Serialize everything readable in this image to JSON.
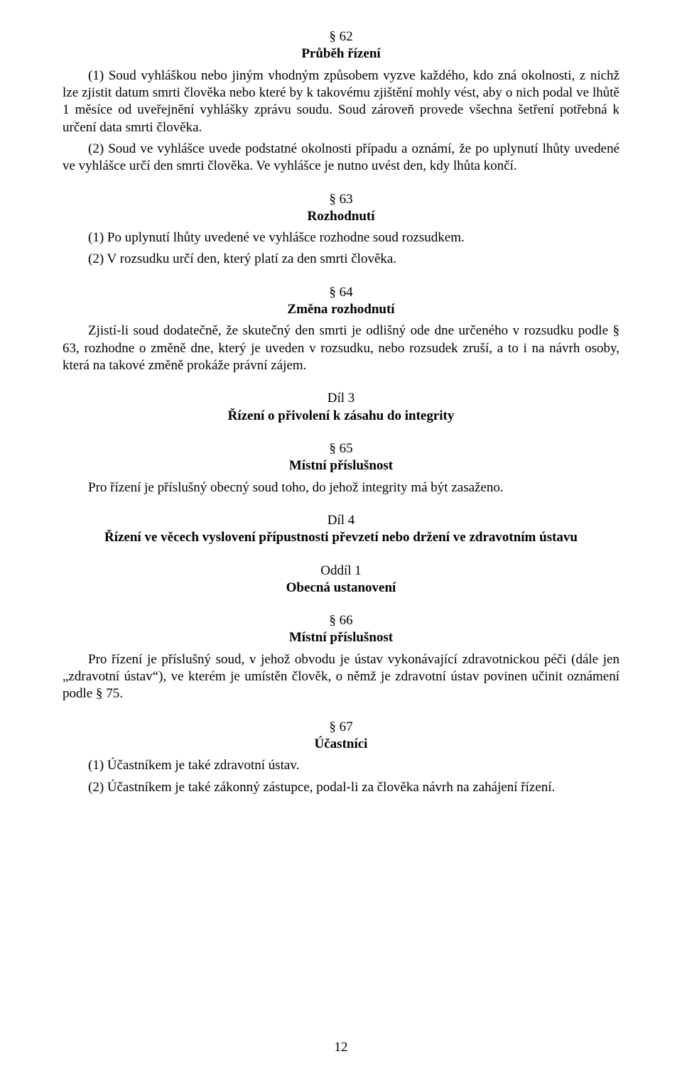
{
  "s62": {
    "num": "§ 62",
    "title": "Průběh řízení",
    "p1": "(1) Soud vyhláškou nebo jiným vhodným způsobem vyzve každého, kdo zná okolnosti, z nichž lze zjistit datum smrti člověka nebo které by k takovému zjištění mohly vést, aby o nich podal ve lhůtě 1 měsíce od uveřejnění vyhlášky zprávu soudu. Soud zároveň provede všechna šetření potřebná k určení data smrti člověka.",
    "p2": "(2) Soud ve vyhlášce uvede podstatné okolnosti případu a oznámí, že po uplynutí lhůty uvedené ve vyhlášce určí den smrti člověka. Ve vyhlášce je nutno uvést den, kdy lhůta končí."
  },
  "s63": {
    "num": "§ 63",
    "title": "Rozhodnutí",
    "p1": "(1) Po uplynutí lhůty uvedené ve vyhlášce rozhodne soud rozsudkem.",
    "p2": "(2) V rozsudku určí den, který platí za den smrti člověka."
  },
  "s64": {
    "num": "§ 64",
    "title": "Změna rozhodnutí",
    "p1": "Zjistí-li soud dodatečně, že skutečný den smrti je odlišný ode dne určeného v rozsudku podle § 63, rozhodne o změně dne, který je uveden v rozsudku, nebo rozsudek zruší, a to i na návrh osoby, která na takové změně prokáže právní zájem."
  },
  "dil3": {
    "label": "Díl 3",
    "title": "Řízení o přivolení k zásahu do integrity"
  },
  "s65": {
    "num": "§ 65",
    "title": "Místní příslušnost",
    "p1": "Pro řízení je příslušný obecný soud toho, do jehož integrity má být zasaženo."
  },
  "dil4": {
    "label": "Díl 4",
    "title": "Řízení  ve věcech vyslovení přípustnosti převzetí nebo držení ve zdravotním ústavu"
  },
  "oddil1": {
    "label": "Oddíl 1",
    "title": "Obecná ustanovení"
  },
  "s66": {
    "num": "§ 66",
    "title": "Místní příslušnost",
    "p1": "Pro řízení je příslušný soud, v jehož obvodu je ústav vykonávající zdravotnickou péči (dále jen „zdravotní ústav“), ve kterém je umístěn člověk, o němž je zdravotní ústav povinen učinit oznámení podle § 75."
  },
  "s67": {
    "num": "§ 67",
    "title": "Účastníci",
    "p1": "(1) Účastníkem je také zdravotní ústav.",
    "p2": "(2) Účastníkem je také zákonný zástupce, podal-li za člověka návrh na zahájení řízení."
  },
  "pageNumber": "12"
}
